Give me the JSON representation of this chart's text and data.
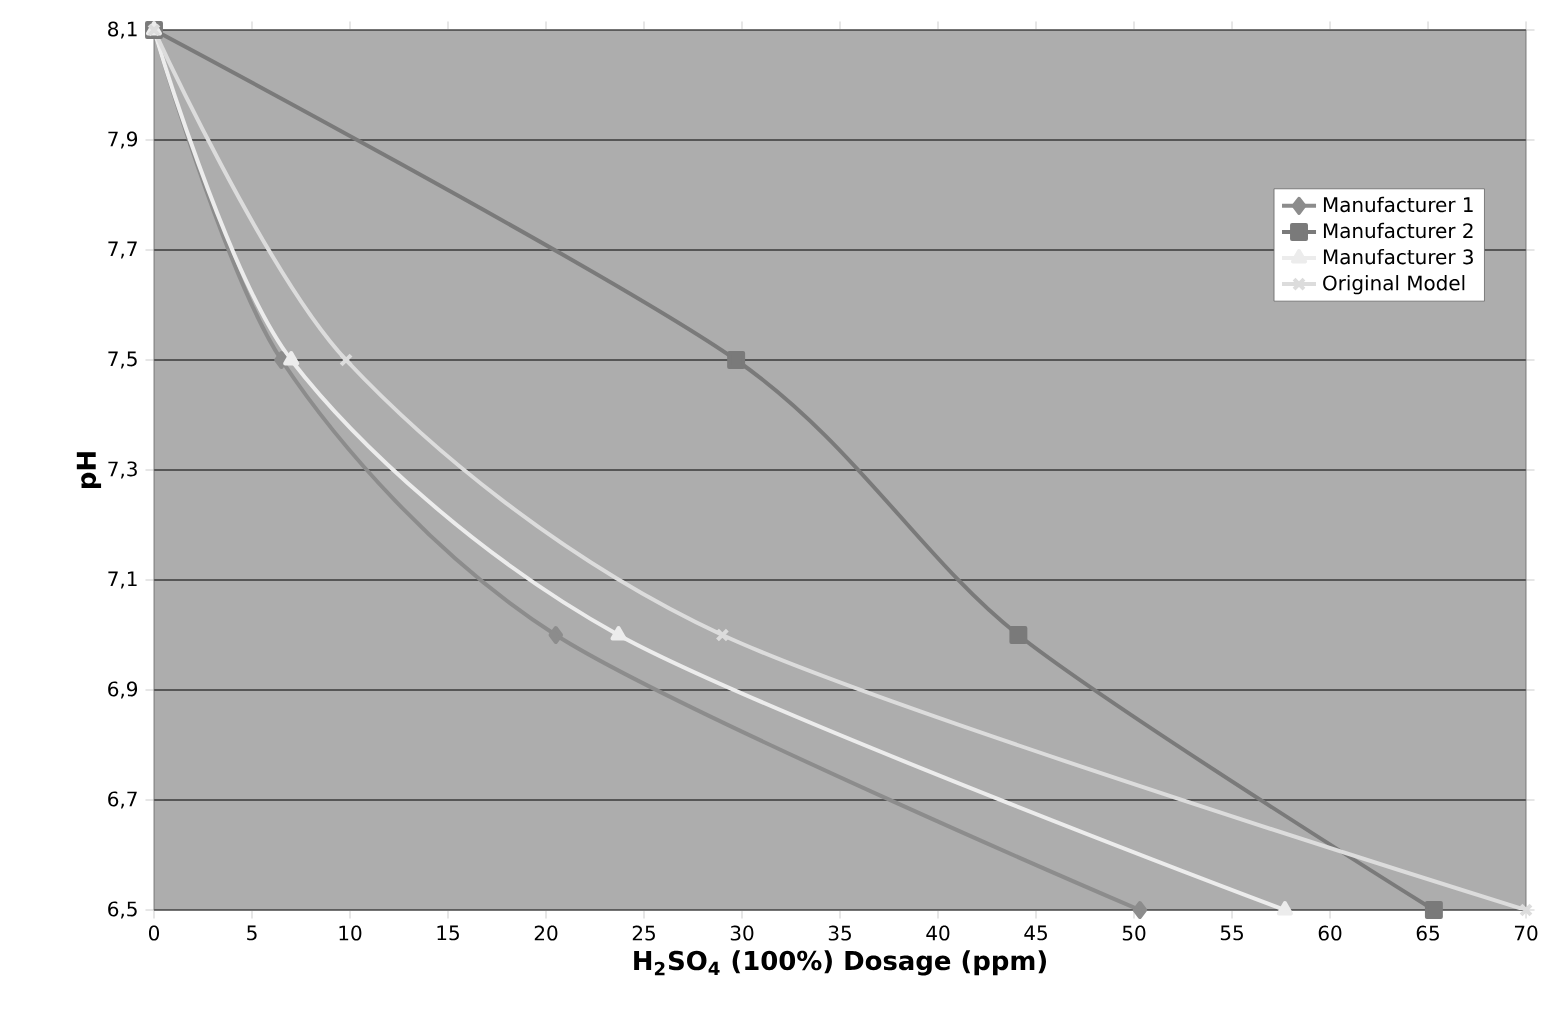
{
  "chart_data": {
    "type": "line",
    "xlabel": "H$_{2}$SO$_{4}$ (100%) Dosage (ppm)",
    "ylabel": "pH",
    "xlim": [
      0,
      70
    ],
    "xticks": [
      0,
      5,
      10,
      15,
      20,
      25,
      30,
      35,
      40,
      45,
      50,
      55,
      60,
      65,
      70
    ],
    "ylim": [
      6.5,
      8.1
    ],
    "yticks": [
      {
        "value": 6.5,
        "label": "6,5"
      },
      {
        "value": 6.7,
        "label": "6,7"
      },
      {
        "value": 6.9,
        "label": "6,9"
      },
      {
        "value": 7.1,
        "label": "7,1"
      },
      {
        "value": 7.3,
        "label": "7,3"
      },
      {
        "value": 7.5,
        "label": "7,5"
      },
      {
        "value": 7.7,
        "label": "7,7"
      },
      {
        "value": 7.9,
        "label": "7,9"
      },
      {
        "value": 8.1,
        "label": "8,1"
      }
    ],
    "grid": "y",
    "legend": "right",
    "series": [
      {
        "name": "Manufacturer 1",
        "color": "#8c8c8c",
        "marker": "diamond",
        "x": [
          0,
          6.5,
          20.5,
          50.3
        ],
        "values": [
          8.1,
          7.5,
          7.0,
          6.5
        ]
      },
      {
        "name": "Manufacturer 2",
        "color": "#7a7a7a",
        "marker": "square",
        "x": [
          0,
          29.7,
          44.1,
          65.3
        ],
        "values": [
          8.1,
          7.5,
          7.0,
          6.5
        ]
      },
      {
        "name": "Manufacturer 3",
        "color": "#ececec",
        "marker": "triangle",
        "x": [
          0,
          7.0,
          23.7,
          57.7
        ],
        "values": [
          8.1,
          7.5,
          7.0,
          6.5
        ]
      },
      {
        "name": "Original Model",
        "color": "#dcdcdc",
        "marker": "cross",
        "x": [
          0,
          9.8,
          29.0,
          70.0
        ],
        "values": [
          8.1,
          7.5,
          7.0,
          6.5
        ]
      }
    ]
  }
}
